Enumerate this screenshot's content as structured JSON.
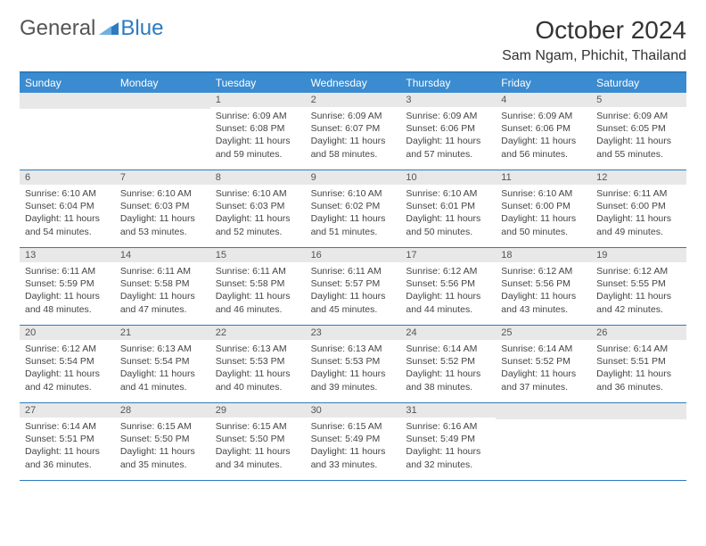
{
  "brand": {
    "part1": "General",
    "part2": "Blue"
  },
  "title": "October 2024",
  "location": "Sam Ngam, Phichit, Thailand",
  "colors": {
    "header_bg": "#3b8bd0",
    "border": "#2d7bc0",
    "daynum_bg": "#e8e8e8",
    "text": "#333333",
    "body_text": "#444444"
  },
  "weekdays": [
    "Sunday",
    "Monday",
    "Tuesday",
    "Wednesday",
    "Thursday",
    "Friday",
    "Saturday"
  ],
  "weeks": [
    [
      null,
      null,
      {
        "n": "1",
        "sunrise": "6:09 AM",
        "sunset": "6:08 PM",
        "daylight": "11 hours and 59 minutes."
      },
      {
        "n": "2",
        "sunrise": "6:09 AM",
        "sunset": "6:07 PM",
        "daylight": "11 hours and 58 minutes."
      },
      {
        "n": "3",
        "sunrise": "6:09 AM",
        "sunset": "6:06 PM",
        "daylight": "11 hours and 57 minutes."
      },
      {
        "n": "4",
        "sunrise": "6:09 AM",
        "sunset": "6:06 PM",
        "daylight": "11 hours and 56 minutes."
      },
      {
        "n": "5",
        "sunrise": "6:09 AM",
        "sunset": "6:05 PM",
        "daylight": "11 hours and 55 minutes."
      }
    ],
    [
      {
        "n": "6",
        "sunrise": "6:10 AM",
        "sunset": "6:04 PM",
        "daylight": "11 hours and 54 minutes."
      },
      {
        "n": "7",
        "sunrise": "6:10 AM",
        "sunset": "6:03 PM",
        "daylight": "11 hours and 53 minutes."
      },
      {
        "n": "8",
        "sunrise": "6:10 AM",
        "sunset": "6:03 PM",
        "daylight": "11 hours and 52 minutes."
      },
      {
        "n": "9",
        "sunrise": "6:10 AM",
        "sunset": "6:02 PM",
        "daylight": "11 hours and 51 minutes."
      },
      {
        "n": "10",
        "sunrise": "6:10 AM",
        "sunset": "6:01 PM",
        "daylight": "11 hours and 50 minutes."
      },
      {
        "n": "11",
        "sunrise": "6:10 AM",
        "sunset": "6:00 PM",
        "daylight": "11 hours and 50 minutes."
      },
      {
        "n": "12",
        "sunrise": "6:11 AM",
        "sunset": "6:00 PM",
        "daylight": "11 hours and 49 minutes."
      }
    ],
    [
      {
        "n": "13",
        "sunrise": "6:11 AM",
        "sunset": "5:59 PM",
        "daylight": "11 hours and 48 minutes."
      },
      {
        "n": "14",
        "sunrise": "6:11 AM",
        "sunset": "5:58 PM",
        "daylight": "11 hours and 47 minutes."
      },
      {
        "n": "15",
        "sunrise": "6:11 AM",
        "sunset": "5:58 PM",
        "daylight": "11 hours and 46 minutes."
      },
      {
        "n": "16",
        "sunrise": "6:11 AM",
        "sunset": "5:57 PM",
        "daylight": "11 hours and 45 minutes."
      },
      {
        "n": "17",
        "sunrise": "6:12 AM",
        "sunset": "5:56 PM",
        "daylight": "11 hours and 44 minutes."
      },
      {
        "n": "18",
        "sunrise": "6:12 AM",
        "sunset": "5:56 PM",
        "daylight": "11 hours and 43 minutes."
      },
      {
        "n": "19",
        "sunrise": "6:12 AM",
        "sunset": "5:55 PM",
        "daylight": "11 hours and 42 minutes."
      }
    ],
    [
      {
        "n": "20",
        "sunrise": "6:12 AM",
        "sunset": "5:54 PM",
        "daylight": "11 hours and 42 minutes."
      },
      {
        "n": "21",
        "sunrise": "6:13 AM",
        "sunset": "5:54 PM",
        "daylight": "11 hours and 41 minutes."
      },
      {
        "n": "22",
        "sunrise": "6:13 AM",
        "sunset": "5:53 PM",
        "daylight": "11 hours and 40 minutes."
      },
      {
        "n": "23",
        "sunrise": "6:13 AM",
        "sunset": "5:53 PM",
        "daylight": "11 hours and 39 minutes."
      },
      {
        "n": "24",
        "sunrise": "6:14 AM",
        "sunset": "5:52 PM",
        "daylight": "11 hours and 38 minutes."
      },
      {
        "n": "25",
        "sunrise": "6:14 AM",
        "sunset": "5:52 PM",
        "daylight": "11 hours and 37 minutes."
      },
      {
        "n": "26",
        "sunrise": "6:14 AM",
        "sunset": "5:51 PM",
        "daylight": "11 hours and 36 minutes."
      }
    ],
    [
      {
        "n": "27",
        "sunrise": "6:14 AM",
        "sunset": "5:51 PM",
        "daylight": "11 hours and 36 minutes."
      },
      {
        "n": "28",
        "sunrise": "6:15 AM",
        "sunset": "5:50 PM",
        "daylight": "11 hours and 35 minutes."
      },
      {
        "n": "29",
        "sunrise": "6:15 AM",
        "sunset": "5:50 PM",
        "daylight": "11 hours and 34 minutes."
      },
      {
        "n": "30",
        "sunrise": "6:15 AM",
        "sunset": "5:49 PM",
        "daylight": "11 hours and 33 minutes."
      },
      {
        "n": "31",
        "sunrise": "6:16 AM",
        "sunset": "5:49 PM",
        "daylight": "11 hours and 32 minutes."
      },
      null,
      null
    ]
  ],
  "labels": {
    "sunrise": "Sunrise:",
    "sunset": "Sunset:",
    "daylight": "Daylight:"
  }
}
